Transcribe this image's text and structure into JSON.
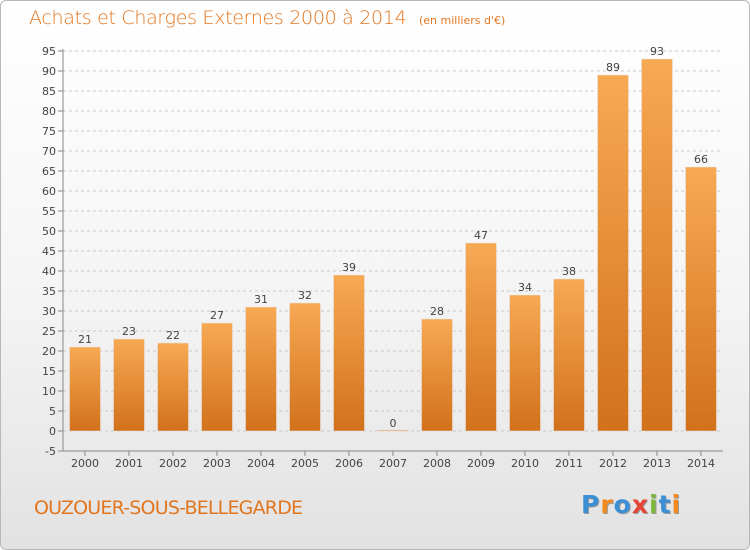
{
  "header": {
    "title": "Achats et Charges Externes 2000 à 2014",
    "unit": "(en milliers d'€)"
  },
  "footer": {
    "commune": "OUZOUER-SOUS-BELLEGARDE",
    "logo_text": "Proxiti"
  },
  "colors": {
    "bar_light": "#f7a953",
    "bar_dark": "#d2711c",
    "title": "#e2761f",
    "grid": "#c8c8c8",
    "logo_letters": [
      "#3b8fd6",
      "#f28a1d",
      "#3b8fd6",
      "#e64436",
      "#7db83a",
      "#3b8fd6",
      "#f28a1d"
    ]
  },
  "chart_data": {
    "type": "bar",
    "title": "Achats et Charges Externes 2000 à 2014",
    "subtitle": "(en milliers d'€)",
    "xlabel": "",
    "ylabel": "",
    "categories": [
      "2000",
      "2001",
      "2002",
      "2003",
      "2004",
      "2005",
      "2006",
      "2007",
      "2008",
      "2009",
      "2010",
      "2011",
      "2012",
      "2013",
      "2014"
    ],
    "values": [
      21,
      23,
      22,
      27,
      31,
      32,
      39,
      0,
      28,
      47,
      34,
      38,
      89,
      93,
      66
    ],
    "ylim": [
      -5,
      95
    ],
    "yticks": [
      -5,
      0,
      5,
      10,
      15,
      20,
      25,
      30,
      35,
      40,
      45,
      50,
      55,
      60,
      65,
      70,
      75,
      80,
      85,
      90,
      95
    ],
    "grid": "horizontal dashed",
    "legend": "none"
  }
}
